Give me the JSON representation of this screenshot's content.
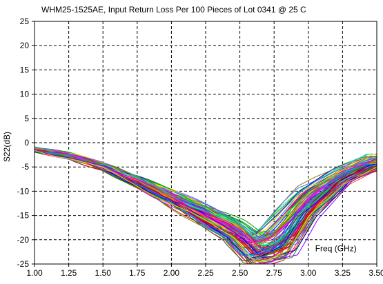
{
  "chart_data": {
    "type": "line",
    "title": "WHM25-1525AE,  Input Return Loss  Per 100 Pieces of Lot 0341 @ 25 C",
    "xlabel": "",
    "ylabel": "S22(dB)",
    "annotation": "Freq (GHz)",
    "xlim": [
      1.0,
      3.5
    ],
    "ylim": [
      -25,
      25
    ],
    "x_ticks": [
      "1.00",
      "1.25",
      "1.50",
      "1.75",
      "2.00",
      "2.25",
      "2.50",
      "2.75",
      "3.00",
      "3.25",
      "3.50"
    ],
    "y_ticks": [
      "25",
      "20",
      "15",
      "10",
      "5",
      "0",
      "-5",
      "-10",
      "-15",
      "-20",
      "-25"
    ],
    "grid": true,
    "legend": "none",
    "series_count": 100,
    "envelope": {
      "x": [
        1.0,
        1.25,
        1.5,
        1.75,
        2.0,
        2.25,
        2.45,
        2.6,
        2.7,
        2.85,
        3.0,
        3.25,
        3.5
      ],
      "upper": [
        -1.2,
        -2.3,
        -4.3,
        -7.0,
        -10.0,
        -13.2,
        -16.0,
        -19.0,
        -18.0,
        -13.0,
        -9.0,
        -5.5,
        -2.5
      ],
      "lower": [
        -1.6,
        -3.1,
        -5.7,
        -9.0,
        -13.0,
        -17.0,
        -20.0,
        -25.0,
        -25.0,
        -24.0,
        -16.0,
        -8.5,
        -5.5
      ]
    }
  }
}
